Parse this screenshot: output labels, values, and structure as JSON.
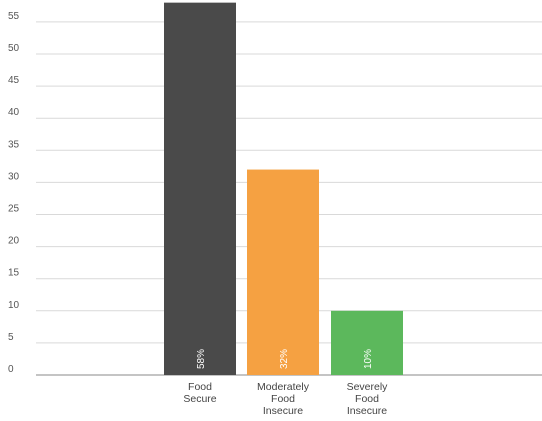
{
  "chart_data": {
    "type": "bar",
    "categories": [
      [
        "Food",
        "Secure"
      ],
      [
        "Moderately",
        "Food",
        "Insecure"
      ],
      [
        "Severely",
        "Food",
        "Insecure"
      ]
    ],
    "values": [
      58,
      32,
      10
    ],
    "data_labels": [
      "58%",
      "32%",
      "10%"
    ],
    "colors": [
      "#4a4a4a",
      "#f5a142",
      "#5cb85c"
    ],
    "yticks": [
      0,
      5,
      10,
      15,
      20,
      25,
      30,
      35,
      40,
      45,
      50,
      55
    ],
    "ylim": [
      0,
      60
    ],
    "grid": true,
    "title": "",
    "xlabel": "",
    "ylabel": ""
  }
}
